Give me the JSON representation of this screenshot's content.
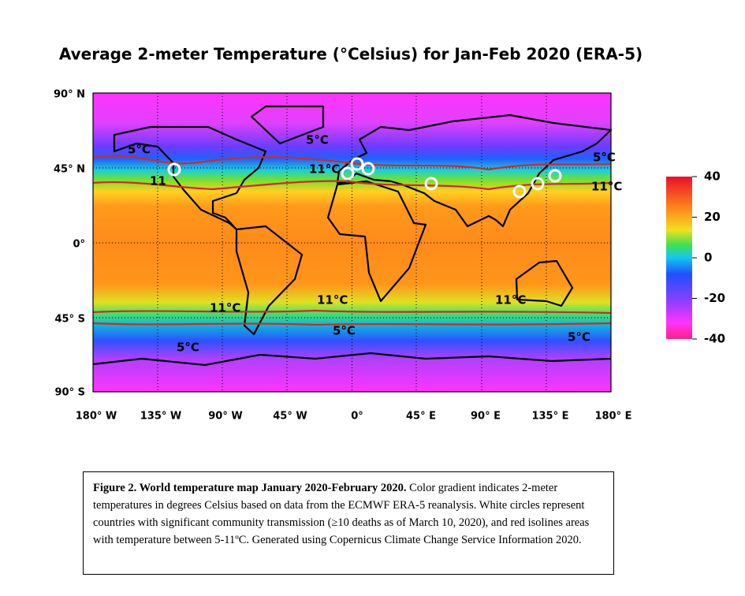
{
  "title": "Average 2-meter Temperature (°Celsius) for Jan-Feb 2020 (ERA-5)",
  "latitude_labels": [
    "90° N",
    "45° N",
    "0°",
    "45° S",
    "90° S"
  ],
  "longitude_labels": [
    "180° W",
    "135° W",
    "90° W",
    "45° W",
    "0°",
    "45° E",
    "90° E",
    "135° E",
    "180° E"
  ],
  "isoline_labels": [
    "5°C",
    "11",
    "5°C",
    "11°C",
    "5°C",
    "11°C",
    "11°C",
    "11°C",
    "11°C",
    "5°C",
    "5°C",
    "5°C"
  ],
  "colorbar": {
    "lim": [
      -40,
      40
    ],
    "ticks": [
      40,
      20,
      0,
      -20,
      -40
    ]
  },
  "caption": {
    "heading": "Figure 2. World temperature map January 2020-February 2020.",
    "body": "Color gradient indicates 2-meter temperatures in degrees Celsius based on data from the ECMWF ERA-5 reanalysis. White circles represent countries with significant community transmission (≥10 deaths as of March 10, 2020), and red isolines areas with temperature between 5-11ºC. Generated using Copernicus Climate Change Service Information 2020."
  }
}
